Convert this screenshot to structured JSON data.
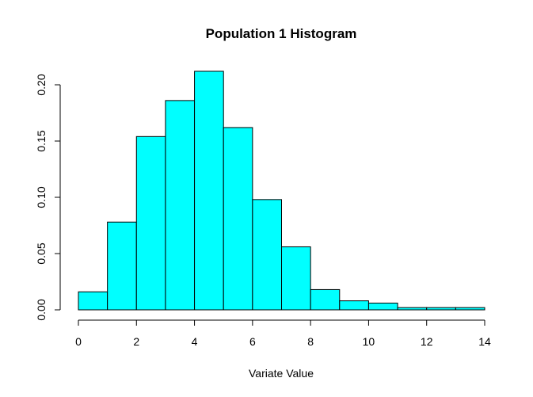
{
  "chart_data": {
    "type": "bar",
    "title": "Population 1 Histogram",
    "xlabel": "Variate Value",
    "ylabel": "",
    "bin_edges": [
      0,
      1,
      2,
      3,
      4,
      5,
      6,
      7,
      8,
      9,
      10,
      11,
      12,
      13,
      14
    ],
    "values": [
      0.016,
      0.078,
      0.154,
      0.186,
      0.212,
      0.162,
      0.098,
      0.056,
      0.018,
      0.008,
      0.006,
      0.002,
      0.002,
      0.002
    ],
    "xlim": [
      0,
      14
    ],
    "ylim": [
      0,
      0.2
    ],
    "x_ticks": [
      0,
      2,
      4,
      6,
      8,
      10,
      12,
      14
    ],
    "x_tick_labels": [
      "0",
      "2",
      "4",
      "6",
      "8",
      "10",
      "12",
      "14"
    ],
    "y_ticks": [
      0,
      0.05,
      0.1,
      0.15,
      0.2
    ],
    "y_tick_labels": [
      "0.00",
      "0.05",
      "0.10",
      "0.15",
      "0.20"
    ],
    "bar_color": "#00ffff",
    "edge_color": "#000000",
    "grid": false
  }
}
